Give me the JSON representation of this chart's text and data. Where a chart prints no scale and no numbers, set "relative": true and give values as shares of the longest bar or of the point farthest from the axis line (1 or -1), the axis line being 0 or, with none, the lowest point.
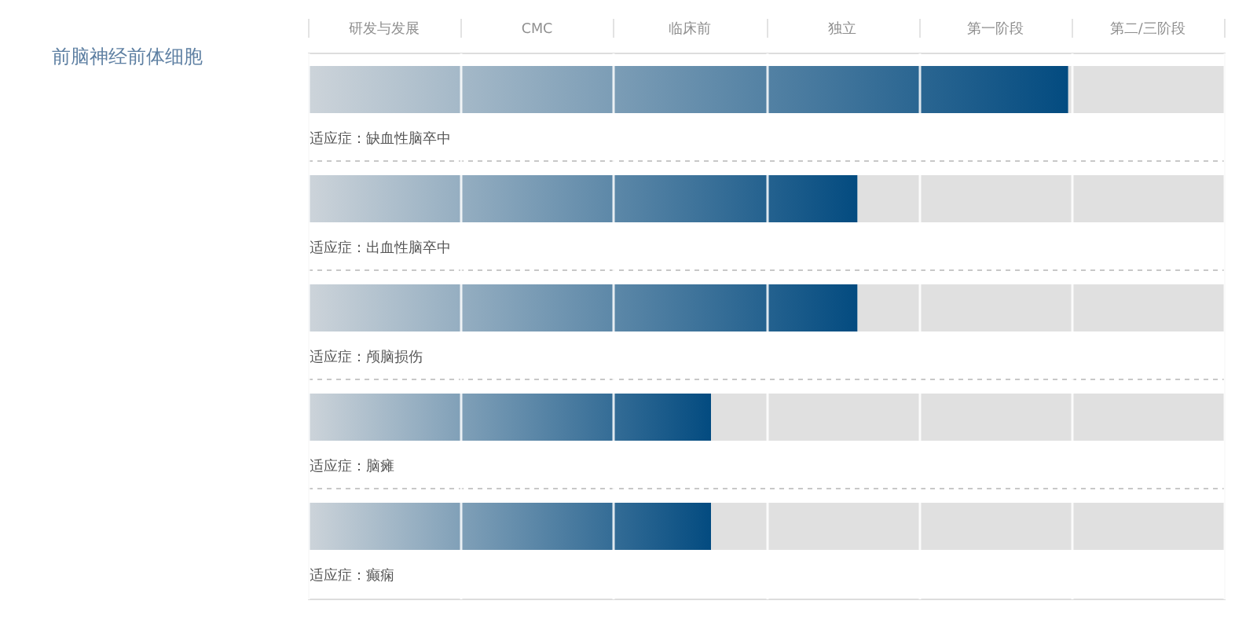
{
  "chart_data": {
    "type": "bar",
    "orientation": "horizontal",
    "stacked": true,
    "relative": true,
    "title": "前脑神经前体细胞",
    "categories": [
      "适应症：缺血性脑卒中",
      "适应症：出血性脑卒中",
      "适应症：颅脑损伤",
      "适应症：脑瘫",
      "适应症：癫痫"
    ],
    "series": [
      {
        "color": "#034b80",
        "values": [
          0.83,
          0.6,
          0.6,
          0.44,
          0.44
        ]
      },
      {
        "color": "#e0e0e0",
        "values": [
          0.17,
          0.4,
          0.4,
          0.56,
          0.56
        ]
      }
    ],
    "annotations": [
      "研发与发展",
      "CMC",
      "临床前",
      "独立",
      "第一阶段",
      "第二/三阶段"
    ],
    "grid": true
  }
}
